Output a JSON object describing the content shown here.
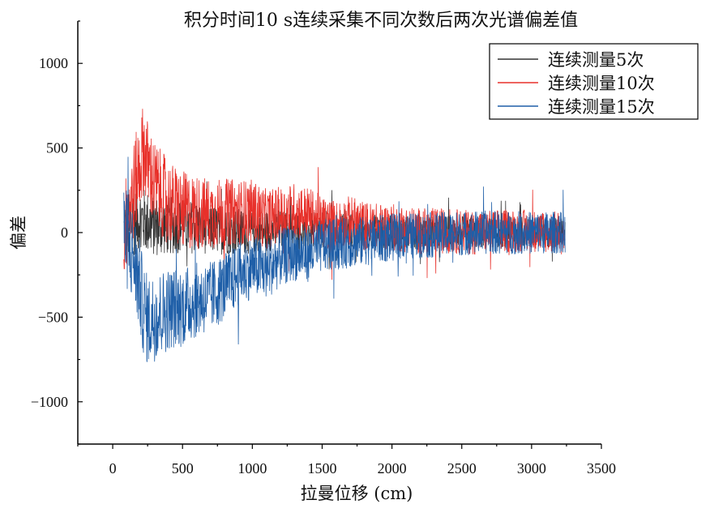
{
  "chart_data": {
    "type": "line",
    "title": "积分时间10 s连续采集不同次数后两次光谱偏差值",
    "xlabel": "拉曼位移 (cm)",
    "ylabel": "偏差",
    "xlim": [
      -250,
      3500
    ],
    "ylim": [
      -1250,
      1250
    ],
    "xticks": [
      0,
      500,
      1000,
      1500,
      2000,
      2500,
      3000,
      3500
    ],
    "xtick_labels": [
      "0",
      "500",
      "1000",
      "1500",
      "2000",
      "2500",
      "3000",
      "3500"
    ],
    "yticks": [
      -1000,
      -500,
      0,
      500,
      1000
    ],
    "ytick_labels": [
      "−1000",
      "−500",
      "0",
      "500",
      "1000"
    ],
    "legend_position": "top-right",
    "grid": false,
    "series": [
      {
        "name": "连续测量5次",
        "color": "#333333",
        "x": [
          80,
          150,
          200,
          250,
          300,
          400,
          500,
          600,
          700,
          800,
          900,
          1000,
          1100,
          1200,
          1300,
          1400,
          1500,
          1600,
          1700,
          1800,
          1900,
          2000,
          2200,
          2400,
          2600,
          2800,
          3000,
          3200,
          3240
        ],
        "y": [
          0,
          60,
          80,
          60,
          40,
          40,
          40,
          30,
          20,
          10,
          10,
          0,
          10,
          20,
          10,
          0,
          20,
          20,
          10,
          0,
          10,
          0,
          0,
          10,
          0,
          0,
          0,
          0,
          0
        ]
      },
      {
        "name": "连续测量10次",
        "color": "#e8302a",
        "x": [
          80,
          150,
          200,
          220,
          250,
          300,
          400,
          500,
          600,
          700,
          800,
          900,
          1000,
          1100,
          1200,
          1300,
          1400,
          1500,
          1600,
          1700,
          1800,
          1900,
          2000,
          2200,
          2400,
          2600,
          2800,
          3000,
          3200,
          3240
        ],
        "y": [
          0,
          250,
          420,
          500,
          400,
          280,
          180,
          130,
          120,
          110,
          120,
          120,
          130,
          80,
          100,
          130,
          110,
          60,
          40,
          70,
          40,
          30,
          30,
          10,
          10,
          0,
          10,
          10,
          0,
          -20
        ]
      },
      {
        "name": "连续测量15次",
        "color": "#1f5fa8",
        "x": [
          80,
          150,
          200,
          220,
          250,
          300,
          400,
          500,
          600,
          700,
          800,
          900,
          1000,
          1100,
          1200,
          1300,
          1400,
          1500,
          1600,
          1700,
          1800,
          1900,
          2000,
          2100,
          2200,
          2400,
          2600,
          2800,
          3000,
          3200,
          3240
        ],
        "y": [
          0,
          -150,
          -350,
          -450,
          -520,
          -500,
          -450,
          -440,
          -400,
          -380,
          -320,
          -250,
          -200,
          -220,
          -150,
          -120,
          -130,
          -80,
          -70,
          -60,
          -50,
          -40,
          -30,
          -20,
          -20,
          -10,
          0,
          0,
          0,
          0,
          0
        ]
      }
    ]
  }
}
